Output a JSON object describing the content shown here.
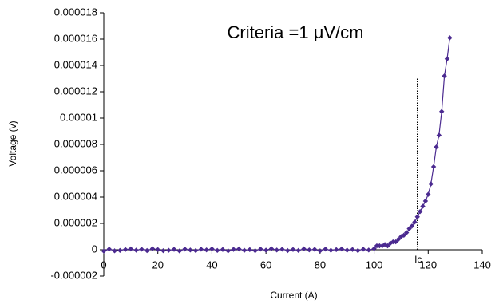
{
  "chart_data": {
    "type": "line",
    "title": "Criteria =1 μV/cm",
    "x_label": "Current (A)",
    "y_label": "Voltage (v)",
    "x": [
      0,
      2,
      4,
      6,
      8,
      10,
      12,
      14,
      16,
      18,
      20,
      22,
      24,
      26,
      28,
      30,
      32,
      34,
      36,
      38,
      40,
      42,
      44,
      46,
      48,
      50,
      52,
      54,
      56,
      58,
      60,
      62,
      64,
      66,
      68,
      70,
      72,
      74,
      76,
      78,
      80,
      82,
      84,
      86,
      88,
      90,
      92,
      94,
      96,
      98,
      100,
      101,
      102,
      103,
      104,
      105,
      106,
      107,
      108,
      109,
      110,
      111,
      112,
      113,
      114,
      115,
      116,
      117,
      118,
      119,
      120,
      121,
      122,
      123,
      124,
      125,
      126,
      127,
      128
    ],
    "series": [
      {
        "color": "#4b2a90",
        "values": [
          -1e-07,
          5e-08,
          -8e-08,
          -5e-08,
          2e-08,
          6e-08,
          -3e-08,
          4e-08,
          -6e-08,
          8e-08,
          1e-08,
          -7e-08,
          -4e-08,
          3e-08,
          -9e-08,
          5e-08,
          -2e-08,
          -6e-08,
          4e-08,
          -1e-08,
          7e-08,
          -5e-08,
          2e-08,
          -8e-08,
          3e-08,
          6e-08,
          -4e-08,
          1e-08,
          -7e-08,
          5e-08,
          -3e-08,
          8e-08,
          -2e-08,
          4e-08,
          -6e-08,
          2e-08,
          -5e-08,
          7e-08,
          -1e-08,
          3e-08,
          -8e-08,
          5e-08,
          -4e-08,
          1e-08,
          6e-08,
          -3e-08,
          2e-08,
          -6e-08,
          4e-08,
          -2e-08,
          8e-08,
          3e-07,
          3e-07,
          3e-07,
          4e-07,
          3e-07,
          5e-07,
          6e-07,
          6e-07,
          8e-07,
          1e-06,
          1.1e-06,
          1.3e-06,
          1.6e-06,
          1.8e-06,
          2.1e-06,
          2.5e-06,
          2.9e-06,
          3.3e-06,
          3.7e-06,
          4.2e-06,
          5e-06,
          6.3e-06,
          7.8e-06,
          8.7e-06,
          1.05e-05,
          1.32e-05,
          1.45e-05,
          1.61e-05
        ]
      }
    ],
    "criterion_line": {
      "x": 116,
      "y_top": 1.3e-05,
      "label": "Ic"
    },
    "xlim": [
      0,
      140
    ],
    "xticks": [
      0,
      20,
      40,
      60,
      80,
      100,
      120,
      140
    ],
    "ylim": [
      -2e-06,
      1.8e-05
    ],
    "yticks": [
      {
        "value": -2e-06,
        "label": "-0.000002"
      },
      0,
      {
        "value": 2e-06,
        "label": "0.000002"
      },
      {
        "value": 4e-06,
        "label": "0.000004"
      },
      {
        "value": 6e-06,
        "label": "0.000006"
      },
      {
        "value": 8e-06,
        "label": "0.000008"
      },
      {
        "value": 1e-05,
        "label": "0.00001"
      },
      {
        "value": 1.2e-05,
        "label": "0.000012"
      },
      {
        "value": 1.4e-05,
        "label": "0.000014"
      },
      {
        "value": 1.6e-05,
        "label": "0.000016"
      },
      {
        "value": 1.8e-05,
        "label": "0.000018"
      }
    ],
    "grid": false
  }
}
